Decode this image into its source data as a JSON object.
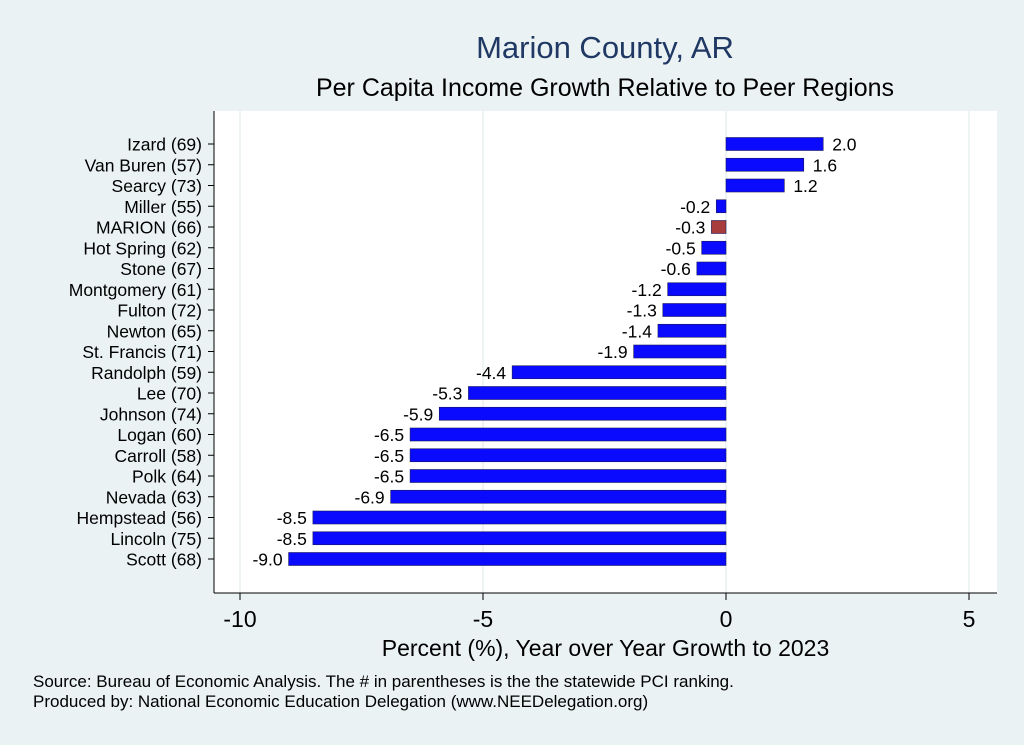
{
  "title": "Marion County, AR",
  "subtitle": "Per Capita Income Growth Relative to Peer Regions",
  "notes": {
    "source": "Source: Bureau of Economic Analysis. The # in parentheses is the the statewide PCI ranking.",
    "produced": "Produced by: National Economic Education Delegation (www.NEEDelegation.org)"
  },
  "colors": {
    "bar": "#0a0aff",
    "highlight": "#a83c3c",
    "title": "#1f3864",
    "background": "#eaf2f3",
    "plot": "#ffffff",
    "grid": "#e9eff1"
  },
  "chart_data": {
    "type": "bar",
    "orientation": "horizontal",
    "title": "Marion County, AR",
    "subtitle": "Per Capita Income Growth Relative to Peer Regions",
    "xlabel": "Percent (%), Year over Year Growth to 2023",
    "ylabel": "",
    "xlim": [
      -10,
      5
    ],
    "xticks": [
      -10,
      -5,
      0,
      5
    ],
    "grid": true,
    "highlight": "MARION (66)",
    "categories": [
      "Izard (69)",
      "Van Buren (57)",
      "Searcy (73)",
      "Miller (55)",
      "MARION (66)",
      "Hot Spring (62)",
      "Stone (67)",
      "Montgomery (61)",
      "Fulton (72)",
      "Newton (65)",
      "St. Francis (71)",
      "Randolph (59)",
      "Lee (70)",
      "Johnson (74)",
      "Logan (60)",
      "Carroll (58)",
      "Polk (64)",
      "Nevada (63)",
      "Hempstead (56)",
      "Lincoln (75)",
      "Scott (68)"
    ],
    "values": [
      2.0,
      1.6,
      1.2,
      -0.2,
      -0.3,
      -0.5,
      -0.6,
      -1.2,
      -1.3,
      -1.4,
      -1.9,
      -4.4,
      -5.3,
      -5.9,
      -6.5,
      -6.5,
      -6.5,
      -6.9,
      -8.5,
      -8.5,
      -9.0
    ],
    "labels": [
      "2.0",
      "1.6",
      "1.2",
      "-0.2",
      "-0.3",
      "-0.5",
      "-0.6",
      "-1.2",
      "-1.3",
      "-1.4",
      "-1.9",
      "-4.4",
      "-5.3",
      "-5.9",
      "-6.5",
      "-6.5",
      "-6.5",
      "-6.9",
      "-8.5",
      "-8.5",
      "-9.0"
    ]
  }
}
